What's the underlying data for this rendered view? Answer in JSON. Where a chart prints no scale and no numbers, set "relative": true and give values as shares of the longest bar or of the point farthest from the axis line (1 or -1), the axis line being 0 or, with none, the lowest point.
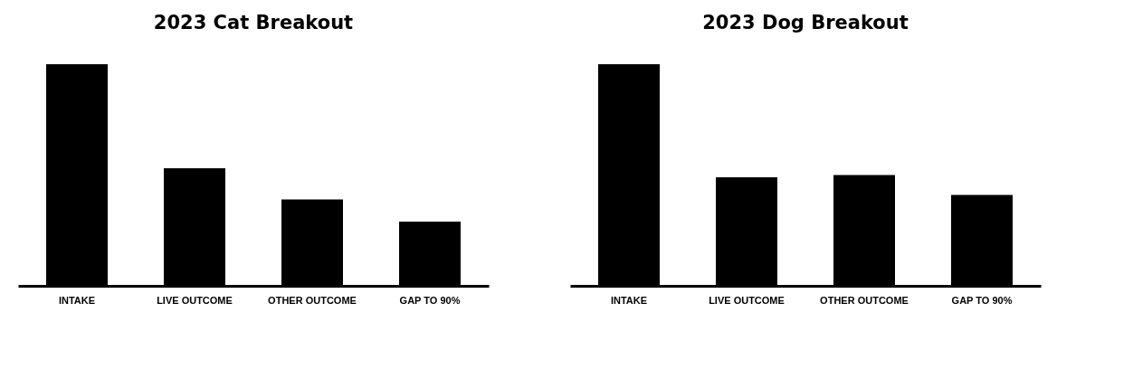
{
  "chart_data": [
    {
      "type": "bar",
      "title": "2023 Cat Breakout",
      "categories": [
        "INTAKE",
        "LIVE OUTCOME",
        "OTHER OUTCOME",
        "GAP TO 90%"
      ],
      "values": [
        1,
        0.53,
        0.39,
        0.29
      ],
      "color": "#000000",
      "relative": true
    },
    {
      "type": "bar",
      "title": "2023 Dog Breakout",
      "categories": [
        "INTAKE",
        "LIVE OUTCOME",
        "OTHER OUTCOME",
        "GAP TO 90%"
      ],
      "values": [
        1,
        0.49,
        0.5,
        0.41
      ],
      "color": "#000000",
      "relative": true
    }
  ]
}
